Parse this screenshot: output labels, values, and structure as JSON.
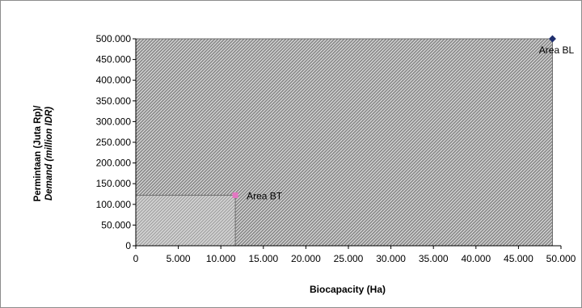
{
  "chart_data": {
    "type": "scatter",
    "title": "",
    "xlabel": "Biocapacity (Ha)",
    "ylabel_line1": "Permintaan (Juta Rp)/",
    "ylabel_line2": "Demand (million IDR)",
    "xlim": [
      0,
      50000
    ],
    "ylim": [
      0,
      500000
    ],
    "x_ticks": [
      0,
      5000,
      10000,
      15000,
      20000,
      25000,
      30000,
      35000,
      40000,
      45000,
      50000
    ],
    "x_tick_labels": [
      "0",
      "5.000",
      "10.000",
      "15.000",
      "20.000",
      "25.000",
      "30.000",
      "35.000",
      "40.000",
      "45.000",
      "50.000"
    ],
    "y_ticks": [
      0,
      50000,
      100000,
      150000,
      200000,
      250000,
      300000,
      350000,
      400000,
      450000,
      500000
    ],
    "y_tick_labels": [
      "0",
      "50.000",
      "100.000",
      "150.000",
      "200.000",
      "250.000",
      "300.000",
      "350.000",
      "400.000",
      "450.000",
      "500.000"
    ],
    "grid": false,
    "legend": "none",
    "series": [
      {
        "label": "Area BL",
        "x": 49000,
        "y": 500000,
        "color": "#1f2f6e",
        "marker": "diamond",
        "shaded_area_color": "#808080"
      },
      {
        "label": "Area BT",
        "x": 11700,
        "y": 122000,
        "color": "#e377c2",
        "marker": "square",
        "shaded_area_color": "#b5b5b5"
      }
    ]
  }
}
